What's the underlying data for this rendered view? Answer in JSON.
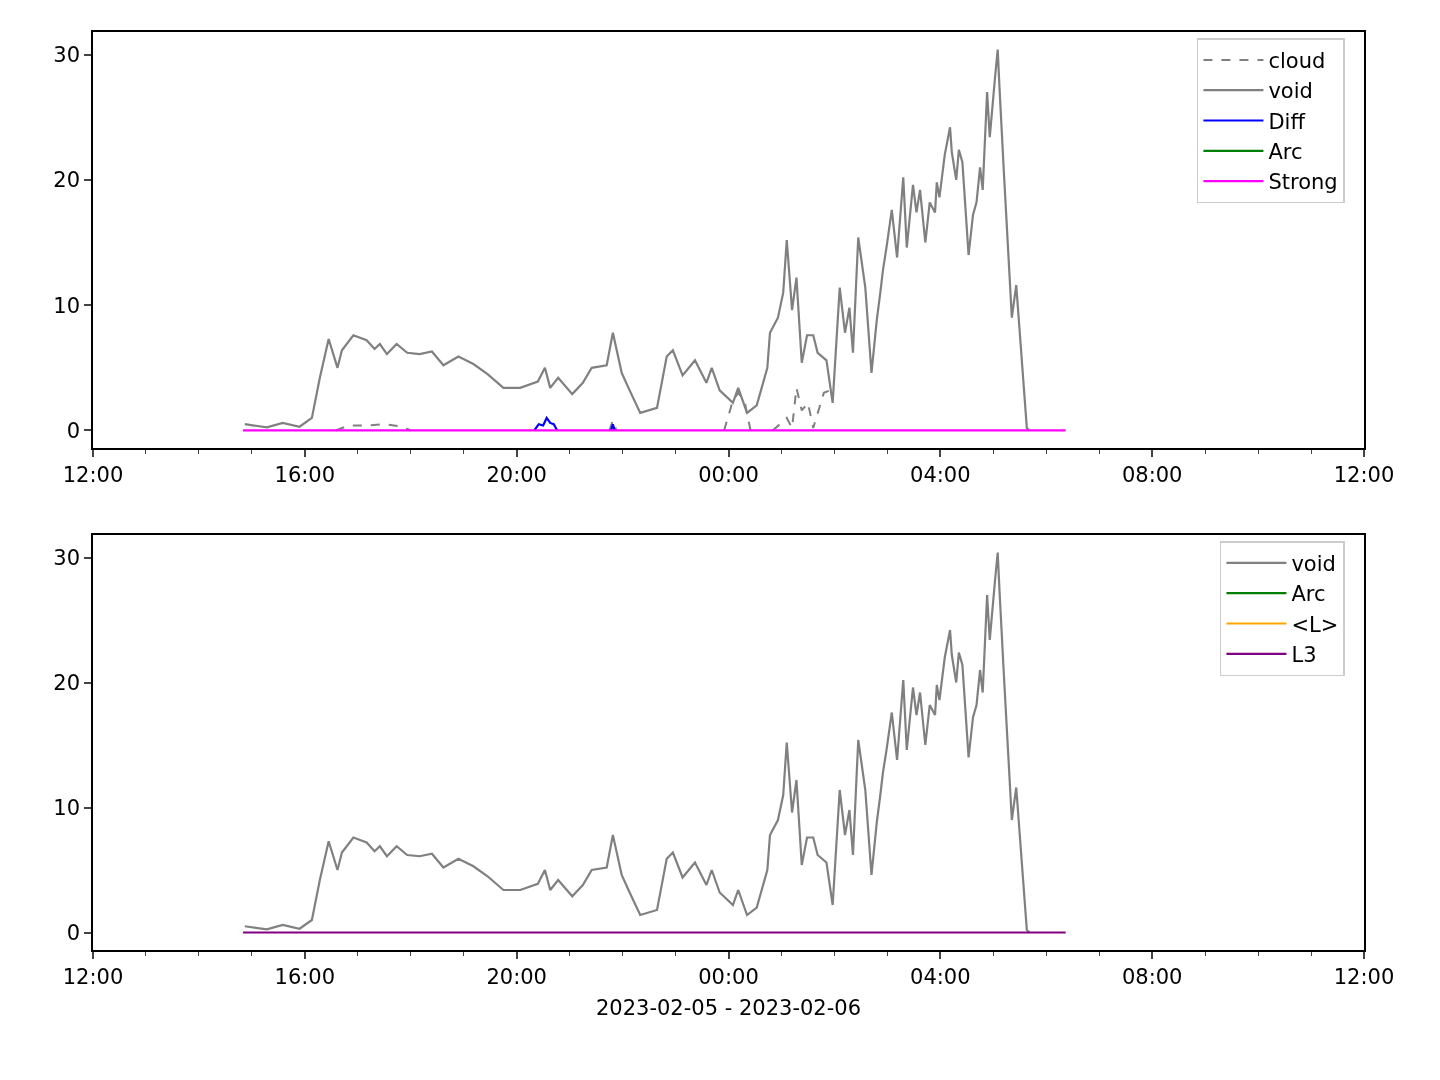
{
  "chart_data": [
    {
      "type": "line",
      "xlim": [
        "2023-02-05T12:00",
        "2023-02-06T12:00"
      ],
      "xticks": [
        {
          "value": "2023-02-05T12:00",
          "label": "12:00"
        },
        {
          "value": "2023-02-05T13:00",
          "label": null
        },
        {
          "value": "2023-02-05T14:00",
          "label": null
        },
        {
          "value": "2023-02-05T15:00",
          "label": null
        },
        {
          "value": "2023-02-05T16:00",
          "label": "16:00"
        },
        {
          "value": "2023-02-05T17:00",
          "label": null
        },
        {
          "value": "2023-02-05T18:00",
          "label": null
        },
        {
          "value": "2023-02-05T19:00",
          "label": null
        },
        {
          "value": "2023-02-05T20:00",
          "label": "20:00"
        },
        {
          "value": "2023-02-05T21:00",
          "label": null
        },
        {
          "value": "2023-02-05T22:00",
          "label": null
        },
        {
          "value": "2023-02-05T23:00",
          "label": null
        },
        {
          "value": "2023-02-06T00:00",
          "label": "00:00"
        },
        {
          "value": "2023-02-06T01:00",
          "label": null
        },
        {
          "value": "2023-02-06T02:00",
          "label": null
        },
        {
          "value": "2023-02-06T03:00",
          "label": null
        },
        {
          "value": "2023-02-06T04:00",
          "label": "04:00"
        },
        {
          "value": "2023-02-06T05:00",
          "label": null
        },
        {
          "value": "2023-02-06T06:00",
          "label": null
        },
        {
          "value": "2023-02-06T07:00",
          "label": null
        },
        {
          "value": "2023-02-06T08:00",
          "label": "08:00"
        },
        {
          "value": "2023-02-06T09:00",
          "label": null
        },
        {
          "value": "2023-02-06T10:00",
          "label": null
        },
        {
          "value": "2023-02-06T11:00",
          "label": null
        },
        {
          "value": "2023-02-06T12:00",
          "label": "12:00"
        }
      ],
      "ylim": [
        -1.4,
        31.8
      ],
      "yticks": [
        0,
        10,
        20,
        30
      ],
      "grid": false,
      "legend": "top right",
      "marker": "none",
      "series": [
        {
          "name": "cloud",
          "color": "#808080",
          "line_style": "dashed",
          "x": [
            "2023-02-05T16:35",
            "2023-02-05T16:50",
            "2023-02-05T17:10",
            "2023-02-05T17:30",
            "2023-02-05T17:50",
            "2023-02-05T18:00",
            "2023-02-05T18:01",
            "2023-02-05T21:45",
            "2023-02-05T21:49",
            "2023-02-05T21:53",
            "2023-02-05T21:54",
            "2023-02-05T23:55",
            "2023-02-06T00:05",
            "2023-02-06T00:11",
            "2023-02-06T00:18",
            "2023-02-06T00:25",
            "2023-02-06T00:26",
            "2023-02-06T00:50",
            "2023-02-06T01:00",
            "2023-02-06T01:06",
            "2023-02-06T01:12",
            "2023-02-06T01:17",
            "2023-02-06T01:23",
            "2023-02-06T01:30",
            "2023-02-06T01:36",
            "2023-02-06T01:48",
            "2023-02-06T01:55"
          ],
          "values": [
            0,
            0.4,
            0.4,
            0.5,
            0.3,
            0,
            null,
            0,
            0.8,
            0,
            null,
            0,
            2.4,
            3.0,
            2.4,
            0,
            null,
            0,
            0.6,
            1.0,
            0.2,
            3.4,
            1.6,
            2.2,
            0.2,
            3.0,
            3.2
          ]
        },
        {
          "name": "void",
          "color": "#808080",
          "line_style": "solid",
          "x": [
            "2023-02-05T14:52",
            "2023-02-05T15:17",
            "2023-02-05T15:35",
            "2023-02-05T15:54",
            "2023-02-05T16:08",
            "2023-02-05T16:17",
            "2023-02-05T16:27",
            "2023-02-05T16:37",
            "2023-02-05T16:42",
            "2023-02-05T16:55",
            "2023-02-05T17:10",
            "2023-02-05T17:19",
            "2023-02-05T17:25",
            "2023-02-05T17:33",
            "2023-02-05T17:44",
            "2023-02-05T17:56",
            "2023-02-05T18:10",
            "2023-02-05T18:24",
            "2023-02-05T18:37",
            "2023-02-05T18:54",
            "2023-02-05T19:11",
            "2023-02-05T19:27",
            "2023-02-05T19:45",
            "2023-02-05T20:04",
            "2023-02-05T20:24",
            "2023-02-05T20:32",
            "2023-02-05T20:38",
            "2023-02-05T20:47",
            "2023-02-05T21:03",
            "2023-02-05T21:15",
            "2023-02-05T21:25",
            "2023-02-05T21:42",
            "2023-02-05T21:49",
            "2023-02-05T21:59",
            "2023-02-05T22:08",
            "2023-02-05T22:20",
            "2023-02-05T22:39",
            "2023-02-05T22:50",
            "2023-02-05T22:57",
            "2023-02-05T23:08",
            "2023-02-05T23:22",
            "2023-02-05T23:35",
            "2023-02-05T23:41",
            "2023-02-05T23:50",
            "2023-02-06T00:05",
            "2023-02-06T00:11",
            "2023-02-06T00:21",
            "2023-02-06T00:32",
            "2023-02-06T00:44",
            "2023-02-06T00:47",
            "2023-02-06T00:56",
            "2023-02-06T01:02",
            "2023-02-06T01:06",
            "2023-02-06T01:12",
            "2023-02-06T01:17",
            "2023-02-06T01:23",
            "2023-02-06T01:29",
            "2023-02-06T01:36",
            "2023-02-06T01:41",
            "2023-02-06T01:51",
            "2023-02-06T01:58",
            "2023-02-06T02:06",
            "2023-02-06T02:12",
            "2023-02-06T02:17",
            "2023-02-06T02:21",
            "2023-02-06T02:27",
            "2023-02-06T02:35",
            "2023-02-06T02:42",
            "2023-02-06T02:48",
            "2023-02-06T02:52",
            "2023-02-06T02:55",
            "2023-02-06T02:59",
            "2023-02-06T03:05",
            "2023-02-06T03:11",
            "2023-02-06T03:18",
            "2023-02-06T03:22",
            "2023-02-06T03:29",
            "2023-02-06T03:33",
            "2023-02-06T03:37",
            "2023-02-06T03:43",
            "2023-02-06T03:48",
            "2023-02-06T03:54",
            "2023-02-06T03:56",
            "2023-02-06T03:59",
            "2023-02-06T04:05",
            "2023-02-06T04:11",
            "2023-02-06T04:13",
            "2023-02-06T04:18",
            "2023-02-06T04:21",
            "2023-02-06T04:25",
            "2023-02-06T04:32",
            "2023-02-06T04:37",
            "2023-02-06T04:41",
            "2023-02-06T04:45",
            "2023-02-06T04:48",
            "2023-02-06T04:53",
            "2023-02-06T04:56",
            "2023-02-06T05:02",
            "2023-02-06T05:05",
            "2023-02-06T05:07",
            "2023-02-06T05:12",
            "2023-02-06T05:21",
            "2023-02-06T05:26",
            "2023-02-06T05:30",
            "2023-02-06T05:38",
            "2023-02-06T05:41"
          ],
          "values": [
            0.5,
            0.25,
            0.6,
            0.3,
            1.0,
            4.2,
            7.3,
            5.0,
            6.4,
            7.6,
            7.2,
            6.5,
            6.9,
            6.1,
            6.9,
            6.2,
            6.1,
            6.3,
            5.2,
            5.9,
            5.3,
            4.5,
            3.4,
            3.4,
            3.9,
            5.0,
            3.4,
            4.2,
            2.9,
            3.8,
            5.0,
            5.2,
            7.8,
            4.6,
            3.2,
            1.4,
            1.8,
            5.9,
            6.4,
            4.4,
            5.6,
            3.8,
            5.0,
            3.2,
            2.2,
            3.4,
            1.4,
            2.0,
            5.0,
            7.8,
            9.0,
            11.0,
            15.2,
            9.6,
            12.2,
            5.4,
            7.6,
            7.6,
            6.2,
            5.6,
            2.2,
            11.4,
            7.8,
            9.8,
            6.2,
            15.4,
            11.4,
            4.6,
            8.8,
            11.0,
            12.8,
            14.6,
            17.6,
            13.8,
            20.2,
            14.6,
            19.6,
            17.4,
            19.2,
            15.0,
            18.2,
            17.4,
            19.8,
            18.6,
            22.0,
            24.2,
            22.2,
            20.0,
            22.4,
            21.4,
            14.0,
            17.2,
            18.2,
            21.0,
            19.2,
            27.0,
            23.4,
            28.2,
            30.4,
            27.4,
            20.6,
            9.0,
            11.6,
            7.8,
            0.2,
            0
          ]
        },
        {
          "name": "Diff",
          "color": "#0000ff",
          "line_style": "solid",
          "x": [
            "2023-02-05T20:20",
            "2023-02-05T20:25",
            "2023-02-05T20:30",
            "2023-02-05T20:34",
            "2023-02-05T20:38",
            "2023-02-05T20:42",
            "2023-02-05T20:46",
            "2023-02-05T20:47",
            "2023-02-05T21:47",
            "2023-02-05T21:49",
            "2023-02-05T21:51"
          ],
          "values": [
            0,
            0.5,
            0.4,
            1.0,
            0.6,
            0.5,
            0,
            null,
            0,
            0.5,
            0
          ]
        },
        {
          "name": "Arc",
          "color": "#008000",
          "line_style": "solid"
        },
        {
          "name": "Strong",
          "color": "#ff00ff",
          "line_style": "solid",
          "x": [
            "2023-02-05T14:50",
            "2023-02-06T06:22"
          ],
          "values": [
            0,
            0
          ]
        }
      ]
    },
    {
      "type": "line",
      "xlabel": "2023-02-05 - 2023-02-06",
      "xlim": [
        "2023-02-05T12:00",
        "2023-02-06T12:00"
      ],
      "xticks": [
        {
          "value": "2023-02-05T12:00",
          "label": "12:00"
        },
        {
          "value": "2023-02-05T13:00",
          "label": null
        },
        {
          "value": "2023-02-05T14:00",
          "label": null
        },
        {
          "value": "2023-02-05T15:00",
          "label": null
        },
        {
          "value": "2023-02-05T16:00",
          "label": "16:00"
        },
        {
          "value": "2023-02-05T17:00",
          "label": null
        },
        {
          "value": "2023-02-05T18:00",
          "label": null
        },
        {
          "value": "2023-02-05T19:00",
          "label": null
        },
        {
          "value": "2023-02-05T20:00",
          "label": "20:00"
        },
        {
          "value": "2023-02-05T21:00",
          "label": null
        },
        {
          "value": "2023-02-05T22:00",
          "label": null
        },
        {
          "value": "2023-02-05T23:00",
          "label": null
        },
        {
          "value": "2023-02-06T00:00",
          "label": "00:00"
        },
        {
          "value": "2023-02-06T01:00",
          "label": null
        },
        {
          "value": "2023-02-06T02:00",
          "label": null
        },
        {
          "value": "2023-02-06T03:00",
          "label": null
        },
        {
          "value": "2023-02-06T04:00",
          "label": "04:00"
        },
        {
          "value": "2023-02-06T05:00",
          "label": null
        },
        {
          "value": "2023-02-06T06:00",
          "label": null
        },
        {
          "value": "2023-02-06T07:00",
          "label": null
        },
        {
          "value": "2023-02-06T08:00",
          "label": "08:00"
        },
        {
          "value": "2023-02-06T09:00",
          "label": null
        },
        {
          "value": "2023-02-06T10:00",
          "label": null
        },
        {
          "value": "2023-02-06T11:00",
          "label": null
        },
        {
          "value": "2023-02-06T12:00",
          "label": "12:00"
        }
      ],
      "ylim": [
        -1.4,
        31.8
      ],
      "yticks": [
        0,
        10,
        20,
        30
      ],
      "grid": false,
      "legend": "top right",
      "marker": "none",
      "series": [
        {
          "name": "void",
          "color": "#808080",
          "line_style": "solid",
          "x": [
            "2023-02-05T14:52",
            "2023-02-05T15:17",
            "2023-02-05T15:35",
            "2023-02-05T15:54",
            "2023-02-05T16:08",
            "2023-02-05T16:17",
            "2023-02-05T16:27",
            "2023-02-05T16:37",
            "2023-02-05T16:42",
            "2023-02-05T16:55",
            "2023-02-05T17:10",
            "2023-02-05T17:19",
            "2023-02-05T17:25",
            "2023-02-05T17:33",
            "2023-02-05T17:44",
            "2023-02-05T17:56",
            "2023-02-05T18:10",
            "2023-02-05T18:24",
            "2023-02-05T18:37",
            "2023-02-05T18:54",
            "2023-02-05T19:11",
            "2023-02-05T19:27",
            "2023-02-05T19:45",
            "2023-02-05T20:04",
            "2023-02-05T20:24",
            "2023-02-05T20:32",
            "2023-02-05T20:38",
            "2023-02-05T20:47",
            "2023-02-05T21:03",
            "2023-02-05T21:15",
            "2023-02-05T21:25",
            "2023-02-05T21:42",
            "2023-02-05T21:49",
            "2023-02-05T21:59",
            "2023-02-05T22:08",
            "2023-02-05T22:20",
            "2023-02-05T22:39",
            "2023-02-05T22:50",
            "2023-02-05T22:57",
            "2023-02-05T23:08",
            "2023-02-05T23:22",
            "2023-02-05T23:35",
            "2023-02-05T23:41",
            "2023-02-05T23:50",
            "2023-02-06T00:05",
            "2023-02-06T00:11",
            "2023-02-06T00:21",
            "2023-02-06T00:32",
            "2023-02-06T00:44",
            "2023-02-06T00:47",
            "2023-02-06T00:56",
            "2023-02-06T01:02",
            "2023-02-06T01:06",
            "2023-02-06T01:12",
            "2023-02-06T01:17",
            "2023-02-06T01:23",
            "2023-02-06T01:29",
            "2023-02-06T01:36",
            "2023-02-06T01:41",
            "2023-02-06T01:51",
            "2023-02-06T01:58",
            "2023-02-06T02:06",
            "2023-02-06T02:12",
            "2023-02-06T02:17",
            "2023-02-06T02:21",
            "2023-02-06T02:27",
            "2023-02-06T02:35",
            "2023-02-06T02:42",
            "2023-02-06T02:48",
            "2023-02-06T02:52",
            "2023-02-06T02:55",
            "2023-02-06T02:59",
            "2023-02-06T03:05",
            "2023-02-06T03:11",
            "2023-02-06T03:18",
            "2023-02-06T03:22",
            "2023-02-06T03:29",
            "2023-02-06T03:33",
            "2023-02-06T03:37",
            "2023-02-06T03:43",
            "2023-02-06T03:48",
            "2023-02-06T03:54",
            "2023-02-06T03:56",
            "2023-02-06T03:59",
            "2023-02-06T04:05",
            "2023-02-06T04:11",
            "2023-02-06T04:13",
            "2023-02-06T04:18",
            "2023-02-06T04:21",
            "2023-02-06T04:25",
            "2023-02-06T04:32",
            "2023-02-06T04:37",
            "2023-02-06T04:41",
            "2023-02-06T04:45",
            "2023-02-06T04:48",
            "2023-02-06T04:53",
            "2023-02-06T04:56",
            "2023-02-06T05:02",
            "2023-02-06T05:05",
            "2023-02-06T05:07",
            "2023-02-06T05:12",
            "2023-02-06T05:21",
            "2023-02-06T05:26",
            "2023-02-06T05:30",
            "2023-02-06T05:38",
            "2023-02-06T05:41"
          ],
          "values": [
            0.5,
            0.25,
            0.6,
            0.3,
            1.0,
            4.2,
            7.3,
            5.0,
            6.4,
            7.6,
            7.2,
            6.5,
            6.9,
            6.1,
            6.9,
            6.2,
            6.1,
            6.3,
            5.2,
            5.9,
            5.3,
            4.5,
            3.4,
            3.4,
            3.9,
            5.0,
            3.4,
            4.2,
            2.9,
            3.8,
            5.0,
            5.2,
            7.8,
            4.6,
            3.2,
            1.4,
            1.8,
            5.9,
            6.4,
            4.4,
            5.6,
            3.8,
            5.0,
            3.2,
            2.2,
            3.4,
            1.4,
            2.0,
            5.0,
            7.8,
            9.0,
            11.0,
            15.2,
            9.6,
            12.2,
            5.4,
            7.6,
            7.6,
            6.2,
            5.6,
            2.2,
            11.4,
            7.8,
            9.8,
            6.2,
            15.4,
            11.4,
            4.6,
            8.8,
            11.0,
            12.8,
            14.6,
            17.6,
            13.8,
            20.2,
            14.6,
            19.6,
            17.4,
            19.2,
            15.0,
            18.2,
            17.4,
            19.8,
            18.6,
            22.0,
            24.2,
            22.2,
            20.0,
            22.4,
            21.4,
            14.0,
            17.2,
            18.2,
            21.0,
            19.2,
            27.0,
            23.4,
            28.2,
            30.4,
            27.4,
            20.6,
            9.0,
            11.6,
            7.8,
            0.2,
            0
          ]
        },
        {
          "name": "Arc",
          "color": "#008000",
          "line_style": "solid"
        },
        {
          "name": "<L>",
          "color": "#ffa500",
          "line_style": "solid"
        },
        {
          "name": "L3",
          "color": "#800080",
          "line_style": "solid",
          "x": [
            "2023-02-05T14:50",
            "2023-02-06T06:22"
          ],
          "values": [
            0,
            0
          ]
        }
      ]
    }
  ]
}
